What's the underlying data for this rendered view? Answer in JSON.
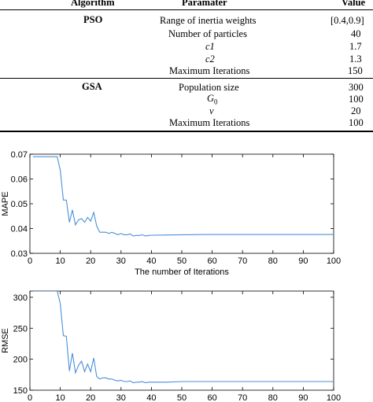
{
  "table": {
    "headers": {
      "algorithm": "Algorithm",
      "parameter": "Paramater",
      "value": "Value"
    },
    "groups": [
      {
        "algorithm": "PSO",
        "rows": [
          {
            "param": "Range of inertia weights",
            "value": "[0.4,0.9]"
          },
          {
            "param": "Number of particles",
            "value": "40"
          },
          {
            "param": "c1",
            "value": "1.7",
            "italic": true
          },
          {
            "param": "c2",
            "value": "1.3",
            "italic": true
          },
          {
            "param": "Maximum Iterations",
            "value": "150"
          }
        ]
      },
      {
        "algorithm": "GSA",
        "rows": [
          {
            "param": "Population size",
            "value": "300"
          },
          {
            "param": "G",
            "sub": "0",
            "value": "100",
            "italic": true
          },
          {
            "param": "v",
            "value": "20",
            "italic": true
          },
          {
            "param": "Maximum Iterations",
            "value": "100"
          }
        ]
      }
    ]
  },
  "chart_data": [
    {
      "type": "line",
      "xlabel": "The number of Iterations",
      "ylabel": "MAPE",
      "xlim": [
        0,
        100
      ],
      "ylim": [
        0.03,
        0.07
      ],
      "xticks": [
        "0",
        "10",
        "20",
        "30",
        "40",
        "50",
        "60",
        "70",
        "80",
        "90",
        "100"
      ],
      "yticks": [
        "0.03",
        "0.04",
        "0.05",
        "0.06",
        "0.07"
      ],
      "line_color": "#4a90d9",
      "x": [
        1,
        9,
        10,
        11,
        12,
        13,
        14,
        15,
        16,
        17,
        18,
        19,
        20,
        21,
        22,
        23,
        24,
        25,
        26,
        27,
        28,
        29,
        30,
        31,
        32,
        33,
        34,
        35,
        36,
        37,
        38,
        39,
        40,
        45,
        50,
        60,
        70,
        80,
        90,
        100
      ],
      "y": [
        0.069,
        0.069,
        0.0635,
        0.0515,
        0.0515,
        0.0425,
        0.0475,
        0.0415,
        0.0435,
        0.044,
        0.0425,
        0.0445,
        0.043,
        0.0465,
        0.041,
        0.0385,
        0.0385,
        0.0385,
        0.038,
        0.0385,
        0.038,
        0.0375,
        0.038,
        0.0375,
        0.0375,
        0.0378,
        0.037,
        0.0372,
        0.0372,
        0.0375,
        0.037,
        0.0372,
        0.0373,
        0.0374,
        0.0375,
        0.0376,
        0.0376,
        0.0376,
        0.0376,
        0.0376
      ]
    },
    {
      "type": "line",
      "xlabel": "",
      "ylabel": "RMSE",
      "xlim": [
        0,
        100
      ],
      "ylim": [
        150,
        310
      ],
      "xticks": [
        "0",
        "10",
        "20",
        "30",
        "40",
        "50",
        "60",
        "70",
        "80",
        "90",
        "100"
      ],
      "yticks": [
        "150",
        "200",
        "250",
        "300"
      ],
      "line_color": "#4a90d9",
      "x": [
        1,
        9,
        10,
        11,
        12,
        13,
        14,
        15,
        16,
        17,
        18,
        19,
        20,
        21,
        22,
        23,
        24,
        25,
        26,
        27,
        28,
        29,
        30,
        31,
        32,
        33,
        34,
        35,
        36,
        37,
        38,
        39,
        40,
        45,
        50,
        60,
        70,
        80,
        90,
        100
      ],
      "y": [
        310,
        310,
        290,
        238,
        237,
        181,
        210,
        178,
        190,
        197,
        180,
        192,
        180,
        202,
        172,
        168,
        170,
        170,
        168,
        168,
        166,
        165,
        166,
        164,
        164,
        165,
        162,
        163,
        163,
        164,
        162,
        163,
        163,
        163,
        164,
        164,
        164,
        164,
        164,
        164
      ]
    }
  ]
}
